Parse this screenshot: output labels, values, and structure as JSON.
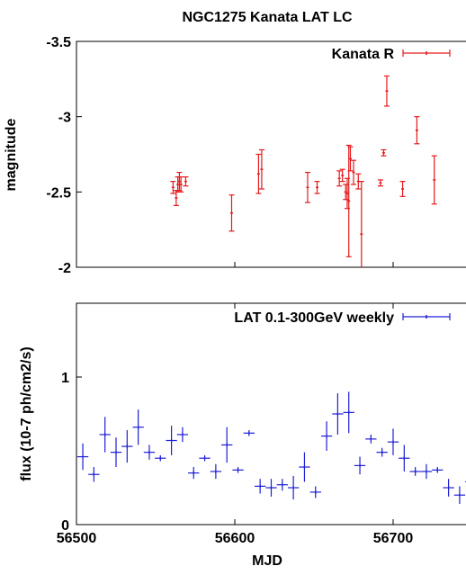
{
  "chart_data": [
    {
      "type": "scatter",
      "panel": "top",
      "title": "NGC1275 Kanata LAT LC",
      "xlabel": "",
      "ylabel": "magnitude",
      "xlim": [
        56500,
        56750
      ],
      "ylim": [
        -3.5,
        -2
      ],
      "y_inverted": true,
      "yticks": [
        "-3.5",
        "-3",
        "-2.5",
        "-2"
      ],
      "ytick_values": [
        -3.5,
        -3,
        -2.5,
        -2
      ],
      "grid": false,
      "legend_position": "top-right",
      "series": [
        {
          "name": "Kanata R",
          "color": "#e41a1c",
          "points": [
            {
              "x": 56561,
              "y": -2.53,
              "yerr": 0.04
            },
            {
              "x": 56563,
              "y": -2.46,
              "yerr": 0.05
            },
            {
              "x": 56564,
              "y": -2.55,
              "yerr": 0.05
            },
            {
              "x": 56565,
              "y": -2.57,
              "yerr": 0.06
            },
            {
              "x": 56566,
              "y": -2.55,
              "yerr": 0.05
            },
            {
              "x": 56569,
              "y": -2.57,
              "yerr": 0.03
            },
            {
              "x": 56598,
              "y": -2.36,
              "yerr": 0.12
            },
            {
              "x": 56615,
              "y": -2.62,
              "yerr": 0.13
            },
            {
              "x": 56617,
              "y": -2.65,
              "yerr": 0.13
            },
            {
              "x": 56646,
              "y": -2.53,
              "yerr": 0.1
            },
            {
              "x": 56652,
              "y": -2.53,
              "yerr": 0.04
            },
            {
              "x": 56666,
              "y": -2.59,
              "yerr": 0.05
            },
            {
              "x": 56668,
              "y": -2.61,
              "yerr": 0.04
            },
            {
              "x": 56670,
              "y": -2.5,
              "yerr": 0.05
            },
            {
              "x": 56671,
              "y": -2.49,
              "yerr": 0.1
            },
            {
              "x": 56672,
              "y": -2.44,
              "yerr": 0.37
            },
            {
              "x": 56673,
              "y": -2.72,
              "yerr": 0.08
            },
            {
              "x": 56675,
              "y": -2.63,
              "yerr": 0.08
            },
            {
              "x": 56678,
              "y": -2.57,
              "yerr": 0.05
            },
            {
              "x": 56680,
              "y": -2.22,
              "yerr": 0.35
            },
            {
              "x": 56692,
              "y": -2.56,
              "yerr": 0.02
            },
            {
              "x": 56694,
              "y": -2.76,
              "yerr": 0.02
            },
            {
              "x": 56696,
              "y": -3.17,
              "yerr": 0.1
            },
            {
              "x": 56706,
              "y": -2.52,
              "yerr": 0.05
            },
            {
              "x": 56715,
              "y": -2.91,
              "yerr": 0.09
            },
            {
              "x": 56726,
              "y": -2.58,
              "yerr": 0.16
            }
          ]
        }
      ]
    },
    {
      "type": "scatter",
      "panel": "bottom",
      "title": "",
      "xlabel": "MJD",
      "ylabel": "flux (10-7 ph/cm2/s)",
      "xlim": [
        56500,
        56750
      ],
      "ylim": [
        0,
        1.5
      ],
      "xticks": [
        "56500",
        "56600",
        "56700"
      ],
      "xtick_values": [
        56500,
        56600,
        56700
      ],
      "yticks": [
        "0",
        "1"
      ],
      "ytick_values": [
        0,
        1
      ],
      "grid": false,
      "legend_position": "top-right",
      "series": [
        {
          "name": "LAT 0.1-300GeV weekly",
          "color": "#1f1fd6",
          "points": [
            {
              "x": 56504,
              "y": 0.46,
              "yerr": 0.09
            },
            {
              "x": 56511,
              "y": 0.34,
              "yerr": 0.05
            },
            {
              "x": 56518,
              "y": 0.61,
              "yerr": 0.12
            },
            {
              "x": 56525,
              "y": 0.49,
              "yerr": 0.1
            },
            {
              "x": 56532,
              "y": 0.53,
              "yerr": 0.11
            },
            {
              "x": 56539,
              "y": 0.66,
              "yerr": 0.12
            },
            {
              "x": 56546,
              "y": 0.49,
              "yerr": 0.05
            },
            {
              "x": 56553,
              "y": 0.45,
              "yerr": 0.02
            },
            {
              "x": 56560,
              "y": 0.57,
              "yerr": 0.1
            },
            {
              "x": 56567,
              "y": 0.61,
              "yerr": 0.05
            },
            {
              "x": 56574,
              "y": 0.35,
              "yerr": 0.04
            },
            {
              "x": 56581,
              "y": 0.45,
              "yerr": 0.02
            },
            {
              "x": 56588,
              "y": 0.36,
              "yerr": 0.05
            },
            {
              "x": 56595,
              "y": 0.54,
              "yerr": 0.12
            },
            {
              "x": 56602,
              "y": 0.37,
              "yerr": 0.02
            },
            {
              "x": 56609,
              "y": 0.62,
              "yerr": 0.02
            },
            {
              "x": 56616,
              "y": 0.26,
              "yerr": 0.05
            },
            {
              "x": 56623,
              "y": 0.25,
              "yerr": 0.06
            },
            {
              "x": 56630,
              "y": 0.27,
              "yerr": 0.04
            },
            {
              "x": 56637,
              "y": 0.25,
              "yerr": 0.08
            },
            {
              "x": 56644,
              "y": 0.39,
              "yerr": 0.1
            },
            {
              "x": 56651,
              "y": 0.22,
              "yerr": 0.04
            },
            {
              "x": 56658,
              "y": 0.6,
              "yerr": 0.1
            },
            {
              "x": 56665,
              "y": 0.75,
              "yerr": 0.14
            },
            {
              "x": 56672,
              "y": 0.76,
              "yerr": 0.14
            },
            {
              "x": 56679,
              "y": 0.4,
              "yerr": 0.06
            },
            {
              "x": 56686,
              "y": 0.58,
              "yerr": 0.03
            },
            {
              "x": 56693,
              "y": 0.49,
              "yerr": 0.03
            },
            {
              "x": 56700,
              "y": 0.56,
              "yerr": 0.09
            },
            {
              "x": 56707,
              "y": 0.45,
              "yerr": 0.09
            },
            {
              "x": 56714,
              "y": 0.36,
              "yerr": 0.03
            },
            {
              "x": 56721,
              "y": 0.36,
              "yerr": 0.05
            },
            {
              "x": 56728,
              "y": 0.37,
              "yerr": 0.02
            },
            {
              "x": 56735,
              "y": 0.25,
              "yerr": 0.06
            },
            {
              "x": 56742,
              "y": 0.2,
              "yerr": 0.06
            },
            {
              "x": 56749,
              "y": 0.29,
              "yerr": 0.06
            }
          ]
        }
      ]
    }
  ]
}
